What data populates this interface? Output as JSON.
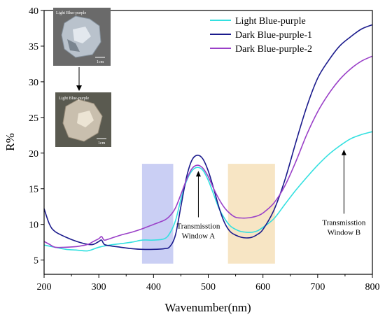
{
  "chart_data": {
    "type": "line",
    "title": "",
    "xlabel": "Wavenumber(nm)",
    "ylabel": "R%",
    "xlim": [
      200,
      800
    ],
    "ylim": [
      3,
      40
    ],
    "xticks": [
      200,
      300,
      400,
      500,
      600,
      700,
      800
    ],
    "yticks": [
      5,
      10,
      15,
      20,
      25,
      30,
      35,
      40
    ],
    "grid": false,
    "legend_position": "top-right",
    "series": [
      {
        "name": "Light Blue-purple",
        "color": "#33e0e0",
        "x": [
          200,
          220,
          240,
          260,
          280,
          300,
          320,
          340,
          360,
          380,
          400,
          420,
          430,
          440,
          450,
          460,
          470,
          480,
          490,
          500,
          510,
          520,
          530,
          540,
          550,
          560,
          570,
          580,
          590,
          600,
          620,
          640,
          660,
          680,
          700,
          720,
          740,
          760,
          780,
          800
        ],
        "y": [
          7.1,
          6.8,
          6.5,
          6.4,
          6.3,
          6.8,
          7.1,
          7.3,
          7.5,
          7.8,
          7.8,
          8.0,
          8.8,
          10.5,
          13.5,
          16.0,
          17.5,
          18.0,
          17.6,
          16.2,
          14.2,
          12.2,
          10.8,
          9.8,
          9.3,
          9.0,
          8.9,
          8.9,
          9.1,
          9.6,
          10.8,
          12.8,
          14.8,
          16.6,
          18.3,
          19.8,
          21.0,
          22.0,
          22.6,
          23.0
        ]
      },
      {
        "name": "Dark Blue-purple-1",
        "color": "#1a1a8c",
        "x": [
          200,
          210,
          220,
          240,
          260,
          280,
          290,
          300,
          305,
          310,
          320,
          340,
          360,
          380,
          400,
          420,
          430,
          440,
          450,
          460,
          470,
          480,
          490,
          500,
          510,
          520,
          530,
          540,
          550,
          560,
          570,
          580,
          590,
          600,
          620,
          640,
          660,
          680,
          700,
          720,
          740,
          760,
          780,
          800
        ],
        "y": [
          12.2,
          10.0,
          9.0,
          8.2,
          7.6,
          7.2,
          7.2,
          7.6,
          7.8,
          7.2,
          7.0,
          6.8,
          6.6,
          6.5,
          6.5,
          6.6,
          6.9,
          8.5,
          12.5,
          16.5,
          19.0,
          19.7,
          19.2,
          17.5,
          15.0,
          12.3,
          10.2,
          9.0,
          8.5,
          8.2,
          8.1,
          8.2,
          8.6,
          9.3,
          12.0,
          16.2,
          21.5,
          26.5,
          30.5,
          33.0,
          35.0,
          36.3,
          37.4,
          38.0
        ]
      },
      {
        "name": "Dark Blue-purple-2",
        "color": "#9a40c8",
        "x": [
          200,
          210,
          220,
          240,
          260,
          280,
          290,
          300,
          305,
          310,
          320,
          340,
          360,
          380,
          400,
          420,
          430,
          440,
          450,
          460,
          470,
          480,
          490,
          500,
          510,
          520,
          530,
          540,
          550,
          560,
          570,
          580,
          590,
          600,
          620,
          640,
          660,
          680,
          700,
          720,
          740,
          760,
          780,
          800
        ],
        "y": [
          7.6,
          7.2,
          6.8,
          6.8,
          6.9,
          7.2,
          7.6,
          8.0,
          8.3,
          7.8,
          8.0,
          8.5,
          8.9,
          9.4,
          10.0,
          10.6,
          11.2,
          12.3,
          14.2,
          16.2,
          17.8,
          18.3,
          17.9,
          16.7,
          15.0,
          13.5,
          12.3,
          11.5,
          11.0,
          10.9,
          10.9,
          11.0,
          11.2,
          11.6,
          13.0,
          15.4,
          18.8,
          22.6,
          25.8,
          28.3,
          30.3,
          31.8,
          32.9,
          33.6
        ]
      }
    ],
    "highlight_regions": [
      {
        "x": [
          379,
          436
        ],
        "y": [
          4.5,
          18.5
        ],
        "color": "#b8bff0"
      },
      {
        "x": [
          536,
          622
        ],
        "y": [
          4.5,
          18.5
        ],
        "color": "#f4dcb0"
      }
    ],
    "annotations": [
      {
        "lines": [
          "Transmisstion",
          "Window A"
        ],
        "arrow_x": 482,
        "arrow_y_from": 11.0,
        "arrow_y_to": 17.5
      },
      {
        "lines": [
          "Transmisstion",
          "Window B"
        ],
        "arrow_x": 748,
        "arrow_y_from": 11.5,
        "arrow_y_to": 20.5
      }
    ],
    "inset_photos": [
      {
        "label": "Light Blue-purple",
        "scale": "1cm"
      },
      {
        "label": "Light Blue-purple",
        "scale": "1cm"
      }
    ]
  }
}
